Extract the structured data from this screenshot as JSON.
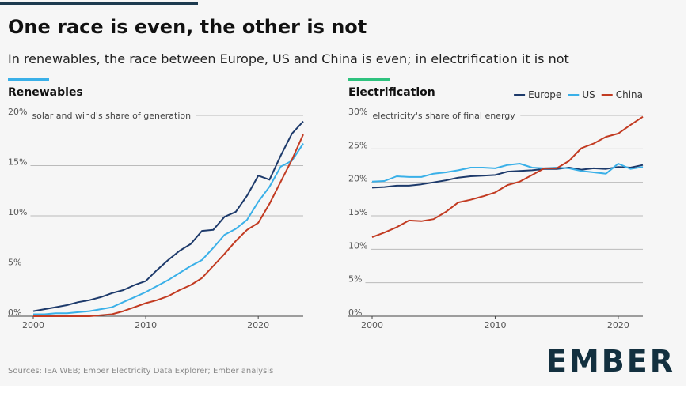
{
  "title": "One race is even, the other is not",
  "subtitle": "In renewables, the race between Europe, US and China is even; in electrification it is not",
  "source": "Sources: IEA WEB; Ember Electricity Data Explorer; Ember analysis",
  "logo": "EMBER",
  "chart_data": [
    {
      "type": "line",
      "title": "Renewables",
      "y_label": "solar and wind's share of generation",
      "x": [
        2000,
        2001,
        2002,
        2003,
        2004,
        2005,
        2006,
        2007,
        2008,
        2009,
        2010,
        2011,
        2012,
        2013,
        2014,
        2015,
        2016,
        2017,
        2018,
        2019,
        2020,
        2021,
        2022,
        2023,
        2024
      ],
      "xlim": [
        2000,
        2024
      ],
      "xticks": [
        2000,
        2010,
        2020
      ],
      "ylim": [
        0,
        20
      ],
      "yticks": [
        {
          "value": 0,
          "label": "0%"
        },
        {
          "value": 5,
          "label": "5%"
        },
        {
          "value": 10,
          "label": "10%"
        },
        {
          "value": 15,
          "label": "15%"
        },
        {
          "value": 20,
          "label": "20%"
        }
      ],
      "grid": true,
      "series": [
        {
          "color": "#1d3a6b",
          "values": [
            0.5,
            0.7,
            0.9,
            1.1,
            1.4,
            1.6,
            1.9,
            2.3,
            2.6,
            3.1,
            3.5,
            4.6,
            5.6,
            6.5,
            7.2,
            8.5,
            8.6,
            9.9,
            10.4,
            12.0,
            14.0,
            13.6,
            16.0,
            18.2,
            19.4
          ]
        },
        {
          "color": "#3ab0e8",
          "values": [
            0.2,
            0.2,
            0.3,
            0.3,
            0.4,
            0.5,
            0.7,
            0.9,
            1.4,
            1.9,
            2.4,
            3.0,
            3.6,
            4.3,
            5.0,
            5.6,
            6.8,
            8.1,
            8.7,
            9.6,
            11.4,
            12.9,
            14.9,
            15.5,
            17.2
          ]
        },
        {
          "color": "#c23b22",
          "values": [
            0,
            0,
            0,
            0,
            0,
            0,
            0.1,
            0.2,
            0.5,
            0.9,
            1.3,
            1.6,
            2.0,
            2.6,
            3.1,
            3.8,
            5.0,
            6.2,
            7.5,
            8.6,
            9.3,
            11.2,
            13.4,
            15.6,
            18.1
          ]
        }
      ]
    },
    {
      "type": "line",
      "title": "Electrification",
      "y_label": "electricity's share of final energy",
      "x": [
        2000,
        2001,
        2002,
        2003,
        2004,
        2005,
        2006,
        2007,
        2008,
        2009,
        2010,
        2011,
        2012,
        2013,
        2014,
        2015,
        2016,
        2017,
        2018,
        2019,
        2020,
        2021,
        2022
      ],
      "xlim": [
        2000,
        2022
      ],
      "xticks": [
        2000,
        2010,
        2020
      ],
      "ylim": [
        0,
        30
      ],
      "yticks": [
        {
          "value": 0,
          "label": "0%"
        },
        {
          "value": 5,
          "label": "5%"
        },
        {
          "value": 10,
          "label": "10%"
        },
        {
          "value": 15,
          "label": "15%"
        },
        {
          "value": 20,
          "label": "20%"
        },
        {
          "value": 25,
          "label": "25%"
        },
        {
          "value": 30,
          "label": "30%"
        }
      ],
      "grid": true,
      "legend": "top-right",
      "series": [
        {
          "name": "Europe",
          "color": "#1d3a6b",
          "values": [
            19.2,
            19.3,
            19.5,
            19.5,
            19.7,
            20.0,
            20.3,
            20.7,
            20.9,
            21.0,
            21.1,
            21.6,
            21.7,
            21.8,
            22.0,
            22.0,
            22.2,
            21.9,
            22.1,
            22.0,
            22.3,
            22.2,
            22.6
          ]
        },
        {
          "name": "US",
          "color": "#3ab0e8",
          "values": [
            20.1,
            20.2,
            20.9,
            20.8,
            20.8,
            21.3,
            21.5,
            21.8,
            22.2,
            22.2,
            22.1,
            22.6,
            22.8,
            22.2,
            22.1,
            22.2,
            22.1,
            21.7,
            21.5,
            21.3,
            22.8,
            22.0,
            22.3
          ]
        },
        {
          "name": "China",
          "color": "#c23b22",
          "values": [
            11.8,
            12.5,
            13.3,
            14.3,
            14.2,
            14.5,
            15.6,
            17.0,
            17.4,
            17.9,
            18.5,
            19.6,
            20.1,
            21.1,
            22.1,
            22.1,
            23.2,
            25.1,
            25.8,
            26.8,
            27.3,
            28.6,
            29.8
          ]
        }
      ]
    }
  ]
}
